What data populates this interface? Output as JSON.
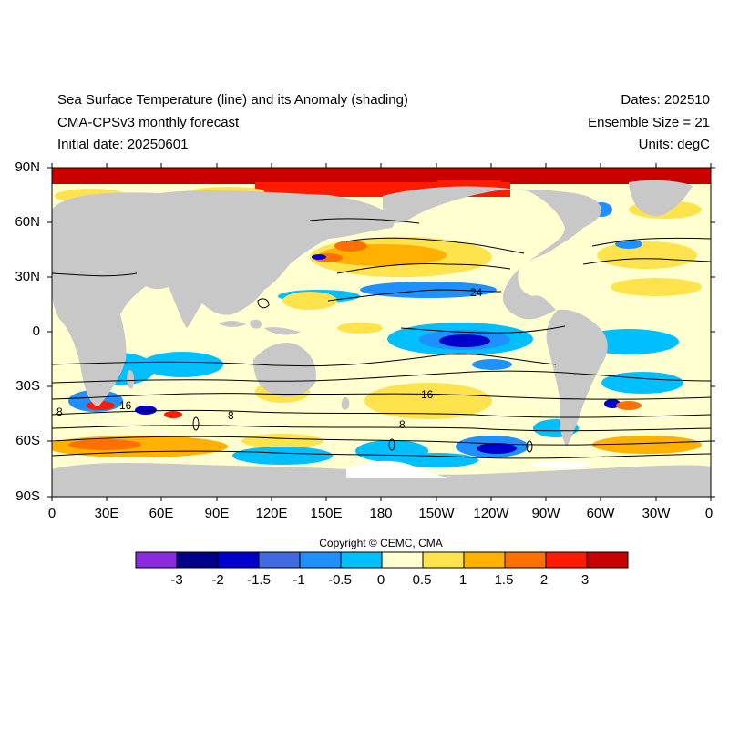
{
  "header": {
    "title_line1": "Sea Surface Temperature (line) and its Anomaly (shading)",
    "title_line2": "CMA-CPSv3 monthly forecast",
    "title_line3": "Initial date: 20250601",
    "dates": "Dates: 202510",
    "ensemble": "Ensemble Size = 21",
    "units": "Units: degC"
  },
  "axes": {
    "lat_labels": [
      "90N",
      "60N",
      "30N",
      "0",
      "30S",
      "60S",
      "90S"
    ],
    "lon_labels": [
      "0",
      "30E",
      "60E",
      "90E",
      "120E",
      "150E",
      "180",
      "150W",
      "120W",
      "90W",
      "60W",
      "30W",
      "0"
    ]
  },
  "contour_labels": [
    "24",
    "16",
    "16",
    "8",
    "8",
    "8"
  ],
  "colorbar": {
    "labels": [
      "-3",
      "-2",
      "-1.5",
      "-1",
      "-0.5",
      "0",
      "0.5",
      "1",
      "1.5",
      "2",
      "3"
    ],
    "colors": [
      "#8a2be2",
      "#00008b",
      "#0000cd",
      "#4169e1",
      "#1e90ff",
      "#00bfff",
      "#ffffd0",
      "#ffe34d",
      "#ffb000",
      "#ff7000",
      "#ff1a00",
      "#c80000"
    ]
  },
  "map_colors": {
    "land": "#c8c8c8",
    "ice": "#ffffff",
    "neutral": "#ffffd0"
  },
  "copyright": "Copyright © CEMC, CMA"
}
